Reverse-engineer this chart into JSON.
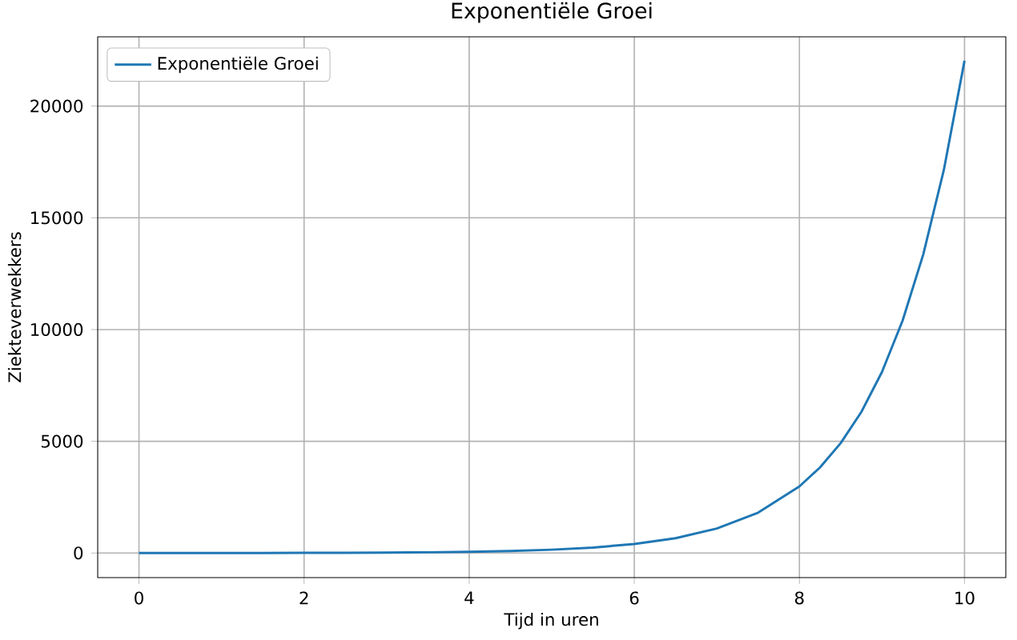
{
  "chart_data": {
    "type": "line",
    "title": "Exponentiële Groei",
    "xlabel": "Tijd in uren",
    "ylabel": "Ziekteverwekkers",
    "x": [
      0,
      0.5,
      1,
      1.5,
      2,
      2.5,
      3,
      3.5,
      4,
      4.5,
      5,
      5.5,
      6,
      6.5,
      7,
      7.5,
      8,
      8.25,
      8.5,
      8.75,
      9,
      9.25,
      9.5,
      9.75,
      10
    ],
    "series": [
      {
        "name": "Exponentiële Groei",
        "color": "#1f77b4",
        "values": [
          1,
          2,
          3,
          4,
          7,
          12,
          20,
          33,
          55,
          90,
          148,
          245,
          403,
          665,
          1097,
          1808,
          2981,
          3830,
          4920,
          6310,
          8100,
          10400,
          13360,
          17150,
          22030
        ]
      }
    ],
    "xlim": [
      -0.5,
      10.5
    ],
    "ylim": [
      -1100,
      23100
    ],
    "xticks": [
      0,
      2,
      4,
      6,
      8,
      10
    ],
    "yticks": [
      0,
      5000,
      10000,
      15000,
      20000
    ],
    "grid": true,
    "legend": "top left"
  }
}
